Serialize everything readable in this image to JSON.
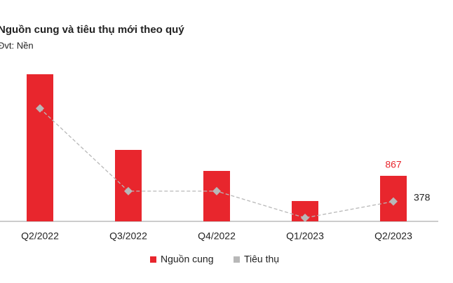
{
  "chart_data": {
    "type": "bar_line",
    "title": "Nguồn cung và tiêu thụ mới theo quý",
    "subtitle": "Đvt: Nền",
    "categories": [
      "Q2/2022",
      "Q3/2022",
      "Q4/2022",
      "Q1/2023",
      "Q2/2023"
    ],
    "series": [
      {
        "name": "Nguồn cung",
        "color": "#e8262d",
        "type": "bar",
        "values": [
          2800,
          1360,
          960,
          387,
          867
        ],
        "value_labels": [
          null,
          null,
          null,
          null,
          "867"
        ]
      },
      {
        "name": "Tiêu thụ",
        "color": "#b8b8b8",
        "type": "line",
        "values": [
          2150,
          575,
          575,
          67,
          378
        ],
        "value_labels": [
          null,
          null,
          null,
          null,
          "378"
        ]
      }
    ]
  }
}
